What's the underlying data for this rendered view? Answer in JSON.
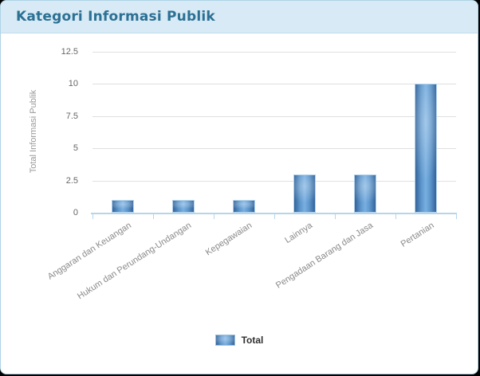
{
  "header": {
    "title": "Kategori Informasi Publik"
  },
  "colors": {
    "page_background": "#000000",
    "card_background": "#ffffff",
    "card_border": "#aed3e6",
    "header_background": "#d7eaf5",
    "title_text": "#2c7094",
    "bar_edge": "#33639a",
    "bar_center": "#79afe1",
    "bar_border": "#b2d2ec",
    "axis_line": "#b7d5ea",
    "gridline": "#e0e0e0",
    "tick_label": "#666666",
    "category_label": "#8a8a8a",
    "axis_title": "#999999",
    "legend_text": "#2e2e2e"
  },
  "chart_data": {
    "type": "bar",
    "title": "Kategori Informasi Publik",
    "categories": [
      "Anggaran dan Keuangan",
      "Hukum dan Perundang-Undangan",
      "Kepegawaian",
      "Lainnya",
      "Pengadaan Barang dan Jasa",
      "Pertanian"
    ],
    "series": [
      {
        "name": "Total",
        "values": [
          1,
          1,
          1,
          3,
          3,
          10
        ]
      }
    ],
    "xlabel": "",
    "ylabel": "Total Informasi Publik",
    "ylim": [
      0,
      12.5
    ],
    "yticks": [
      0,
      2.5,
      5,
      7.5,
      10,
      12.5
    ],
    "grid": true,
    "legend_position": "bottom"
  }
}
